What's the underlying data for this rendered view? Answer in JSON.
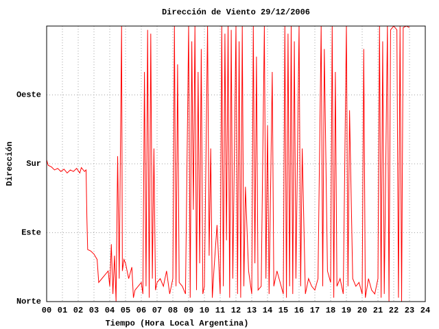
{
  "chart_data": {
    "type": "line",
    "title": "Dirección de Viento 29/12/2006",
    "x_label": "Tiempo (Hora Local Argentina)",
    "y_label": "Dirección",
    "color": "#ff0000",
    "grid": true,
    "xlim": [
      0,
      24
    ],
    "ylim": [
      0,
      360
    ],
    "xticks": [
      {
        "value": 0,
        "label": "00"
      },
      {
        "value": 1,
        "label": "01"
      },
      {
        "value": 2,
        "label": "02"
      },
      {
        "value": 3,
        "label": "03"
      },
      {
        "value": 4,
        "label": "04"
      },
      {
        "value": 5,
        "label": "05"
      },
      {
        "value": 6,
        "label": "06"
      },
      {
        "value": 7,
        "label": "07"
      },
      {
        "value": 8,
        "label": "08"
      },
      {
        "value": 9,
        "label": "09"
      },
      10,
      11,
      12,
      13,
      14,
      15,
      16,
      17,
      18,
      19,
      20,
      21,
      22,
      23,
      24
    ],
    "yticks": [
      {
        "value": 0,
        "label": "Norte"
      },
      {
        "value": 90,
        "label": "Este"
      },
      {
        "value": 180,
        "label": "Sur"
      },
      {
        "value": 270,
        "label": "Oeste"
      }
    ],
    "x": [
      0,
      0.1,
      0.3,
      0.5,
      0.7,
      0.9,
      1.1,
      1.3,
      1.5,
      1.7,
      1.9,
      2.1,
      2.2,
      2.4,
      2.5,
      2.55,
      2.6,
      2.8,
      3.0,
      3.2,
      3.3,
      3.5,
      3.7,
      3.9,
      4.0,
      4.1,
      4.2,
      4.3,
      4.4,
      4.5,
      4.6,
      4.75,
      4.8,
      4.9,
      5.0,
      5.2,
      5.4,
      5.5,
      5.6,
      5.8,
      6.0,
      6.1,
      6.2,
      6.3,
      6.4,
      6.5,
      6.6,
      6.7,
      6.8,
      6.9,
      7.0,
      7.2,
      7.4,
      7.6,
      7.8,
      8.0,
      8.1,
      8.2,
      8.3,
      8.4,
      8.6,
      8.8,
      9.0,
      9.1,
      9.2,
      9.3,
      9.4,
      9.5,
      9.6,
      9.7,
      9.8,
      9.9,
      10.0,
      10.2,
      10.3,
      10.4,
      10.5,
      10.6,
      10.8,
      11.0,
      11.1,
      11.2,
      11.3,
      11.4,
      11.5,
      11.6,
      11.7,
      11.8,
      12.0,
      12.1,
      12.2,
      12.3,
      12.4,
      12.5,
      12.6,
      12.8,
      13.0,
      13.1,
      13.2,
      13.3,
      13.4,
      13.6,
      13.8,
      13.9,
      14.0,
      14.1,
      14.3,
      14.4,
      14.6,
      14.8,
      15.0,
      15.1,
      15.2,
      15.3,
      15.4,
      15.5,
      15.6,
      15.7,
      15.8,
      16.0,
      16.1,
      16.2,
      16.4,
      16.6,
      16.8,
      17.0,
      17.2,
      17.4,
      17.5,
      17.6,
      17.8,
      18.0,
      18.1,
      18.2,
      18.3,
      18.4,
      18.6,
      18.8,
      19.0,
      19.1,
      19.2,
      19.4,
      19.6,
      19.8,
      20.0,
      20.1,
      20.2,
      20.4,
      20.6,
      20.8,
      21.0,
      21.1,
      21.2,
      21.3,
      21.4,
      21.6,
      21.7,
      21.8,
      22.0,
      22.2,
      22.3,
      22.4,
      22.5,
      22.6,
      22.8,
      23.0
    ],
    "values": [
      185,
      178,
      176,
      172,
      174,
      170,
      173,
      168,
      172,
      170,
      174,
      168,
      175,
      170,
      172,
      110,
      68,
      66,
      62,
      55,
      25,
      30,
      35,
      40,
      20,
      75,
      10,
      60,
      0,
      190,
      30,
      360,
      40,
      55,
      50,
      30,
      45,
      5,
      15,
      20,
      25,
      10,
      300,
      20,
      355,
      5,
      350,
      30,
      200,
      15,
      25,
      30,
      20,
      40,
      10,
      30,
      360,
      20,
      310,
      25,
      20,
      10,
      360,
      5,
      340,
      120,
      360,
      15,
      300,
      50,
      330,
      10,
      20,
      360,
      60,
      200,
      5,
      40,
      100,
      10,
      360,
      20,
      350,
      80,
      360,
      5,
      355,
      30,
      360,
      10,
      340,
      5,
      360,
      20,
      150,
      40,
      10,
      360,
      50,
      320,
      15,
      20,
      360,
      30,
      230,
      10,
      300,
      20,
      40,
      25,
      10,
      360,
      5,
      350,
      20,
      360,
      10,
      340,
      30,
      360,
      20,
      200,
      10,
      30,
      20,
      15,
      30,
      360,
      20,
      330,
      40,
      25,
      360,
      5,
      300,
      20,
      30,
      10,
      360,
      20,
      250,
      30,
      20,
      25,
      10,
      330,
      5,
      30,
      15,
      10,
      30,
      360,
      5,
      340,
      10,
      360,
      0,
      355,
      360,
      355,
      5,
      360,
      0,
      358,
      360,
      358
    ]
  }
}
